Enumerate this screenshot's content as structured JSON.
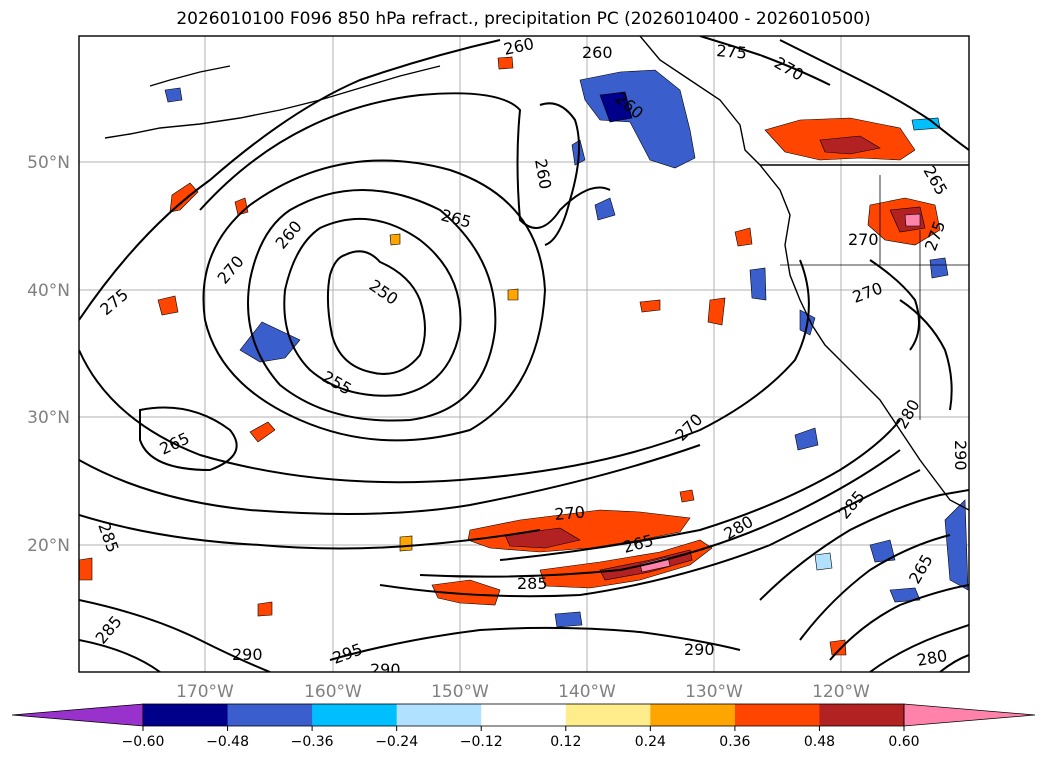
{
  "title": "2026010100 F096 850 hPa refract., precipitation PC (2026010400 - 2026010500)",
  "map": {
    "lat_labels": [
      "50°N",
      "40°N",
      "30°N",
      "20°N"
    ],
    "lon_labels": [
      "170°W",
      "160°W",
      "150°W",
      "140°W",
      "130°W",
      "120°W"
    ],
    "contour_labels": [
      "260",
      "260",
      "275",
      "270",
      "260",
      "260",
      "265",
      "265",
      "260",
      "270",
      "250",
      "275",
      "255",
      "265",
      "270",
      "270",
      "275",
      "270",
      "285",
      "280",
      "270",
      "265",
      "285",
      "280",
      "285",
      "285",
      "290",
      "295",
      "290",
      "290",
      "280",
      "265",
      "290"
    ]
  },
  "colorbar": {
    "ticks": [
      "−0.60",
      "−0.48",
      "−0.36",
      "−0.24",
      "−0.12",
      "0.12",
      "0.24",
      "0.36",
      "0.48",
      "0.60"
    ],
    "colors": [
      "#9932cc",
      "#00008b",
      "#3a5fcd",
      "#00bfff",
      "#b0e2ff",
      "#ffffff",
      "#ffec8b",
      "#ffa500",
      "#ff4500",
      "#b22222",
      "#ff82ab"
    ]
  }
}
